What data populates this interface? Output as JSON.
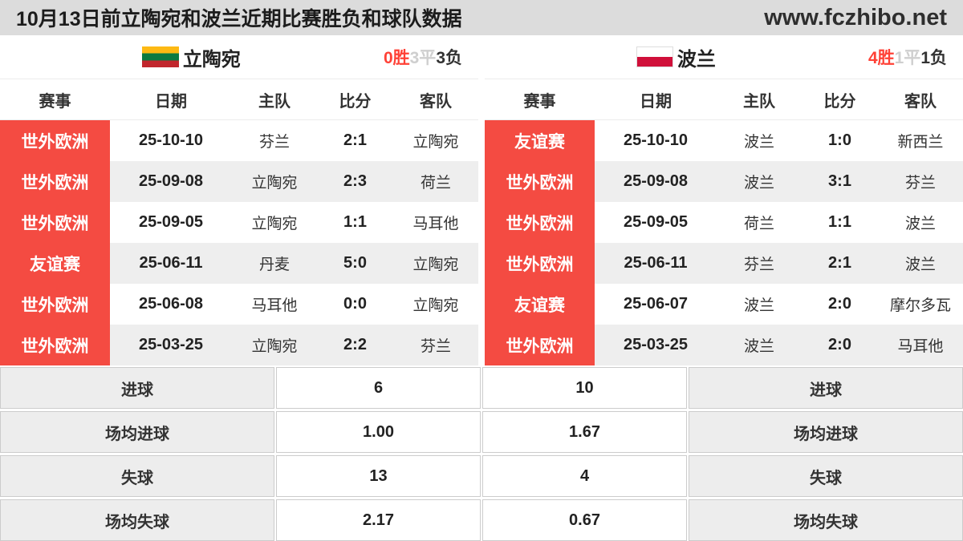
{
  "topbar": {
    "title": "10月13日前立陶宛和波兰近期比赛胜负和球队数据",
    "site": "www.fczhibo.net"
  },
  "columns": {
    "comp": "赛事",
    "date": "日期",
    "home": "主队",
    "score": "比分",
    "away": "客队"
  },
  "stat_labels": {
    "goals": "进球",
    "avg_goals": "场均进球",
    "conceded": "失球",
    "avg_conceded": "场均失球"
  },
  "left": {
    "name": "立陶宛",
    "flag": "lithuania-flag",
    "record": {
      "wins": "0胜",
      "draws": "3平",
      "losses": "3负"
    },
    "matches": [
      {
        "comp": "世外欧洲",
        "date": "25-10-10",
        "home": "芬兰",
        "score": "2:1",
        "away": "立陶宛"
      },
      {
        "comp": "世外欧洲",
        "date": "25-09-08",
        "home": "立陶宛",
        "score": "2:3",
        "away": "荷兰"
      },
      {
        "comp": "世外欧洲",
        "date": "25-09-05",
        "home": "立陶宛",
        "score": "1:1",
        "away": "马耳他"
      },
      {
        "comp": "友谊赛",
        "date": "25-06-11",
        "home": "丹麦",
        "score": "5:0",
        "away": "立陶宛"
      },
      {
        "comp": "世外欧洲",
        "date": "25-06-08",
        "home": "马耳他",
        "score": "0:0",
        "away": "立陶宛"
      },
      {
        "comp": "世外欧洲",
        "date": "25-03-25",
        "home": "立陶宛",
        "score": "2:2",
        "away": "芬兰"
      }
    ],
    "stats": {
      "goals": "6",
      "avg_goals": "1.00",
      "conceded": "13",
      "avg_conceded": "2.17"
    }
  },
  "right": {
    "name": "波兰",
    "flag": "poland-flag",
    "record": {
      "wins": "4胜",
      "draws": "1平",
      "losses": "1负"
    },
    "matches": [
      {
        "comp": "友谊赛",
        "date": "25-10-10",
        "home": "波兰",
        "score": "1:0",
        "away": "新西兰"
      },
      {
        "comp": "世外欧洲",
        "date": "25-09-08",
        "home": "波兰",
        "score": "3:1",
        "away": "芬兰"
      },
      {
        "comp": "世外欧洲",
        "date": "25-09-05",
        "home": "荷兰",
        "score": "1:1",
        "away": "波兰"
      },
      {
        "comp": "世外欧洲",
        "date": "25-06-11",
        "home": "芬兰",
        "score": "2:1",
        "away": "波兰"
      },
      {
        "comp": "友谊赛",
        "date": "25-06-07",
        "home": "波兰",
        "score": "2:0",
        "away": "摩尔多瓦"
      },
      {
        "comp": "世外欧洲",
        "date": "25-03-25",
        "home": "波兰",
        "score": "2:0",
        "away": "马耳他"
      }
    ],
    "stats": {
      "goals": "10",
      "avg_goals": "1.67",
      "conceded": "4",
      "avg_conceded": "0.67"
    }
  },
  "colors": {
    "badge_red": "#f44b42",
    "win_red": "#ff4136",
    "draw_gray": "#cfcfcf",
    "row_alt": "#eeeeee",
    "topbar_bg": "#dcdcdc"
  }
}
